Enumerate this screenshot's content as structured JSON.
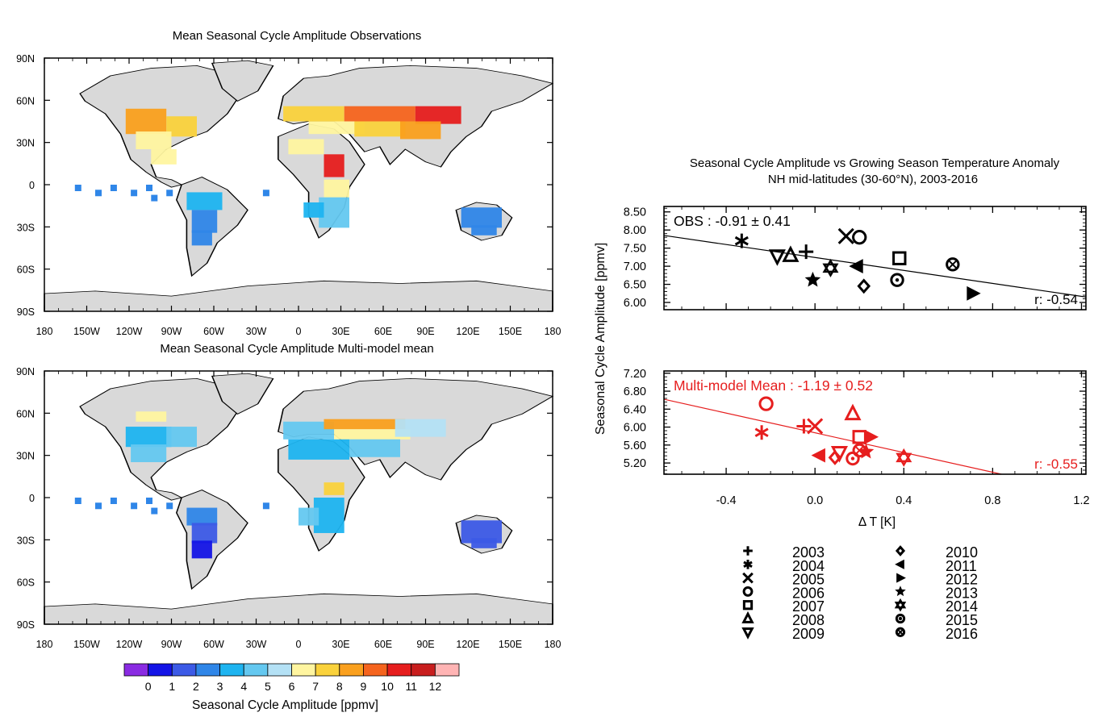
{
  "maps": [
    {
      "title": "Mean Seasonal Cycle Amplitude Observations",
      "lat_ticks": [
        "90N",
        "60N",
        "30N",
        "0",
        "30S",
        "60S",
        "90S"
      ],
      "lon_ticks": [
        "180",
        "150W",
        "120W",
        "90W",
        "60W",
        "30W",
        "0",
        "30E",
        "60E",
        "90E",
        "120E",
        "150E",
        "180"
      ]
    },
    {
      "title": "Mean Seasonal Cycle Amplitude Multi-model mean",
      "lat_ticks": [
        "90N",
        "60N",
        "30N",
        "0",
        "30S",
        "60S",
        "90S"
      ],
      "lon_ticks": [
        "180",
        "150W",
        "120W",
        "90W",
        "60W",
        "30W",
        "0",
        "30E",
        "60E",
        "90E",
        "120E",
        "150E",
        "180"
      ]
    }
  ],
  "colorbar": {
    "label": "Seasonal Cycle Amplitude [ppmv]",
    "ticks": [
      "0",
      "1",
      "2",
      "3",
      "4",
      "5",
      "6",
      "7",
      "8",
      "9",
      "10",
      "11",
      "12"
    ],
    "colors": [
      "#8a2be2",
      "#1414e6",
      "#3c5ae6",
      "#2f86e8",
      "#1eb4f0",
      "#64c8f0",
      "#b4e1f5",
      "#fff5a0",
      "#fad23c",
      "#faa01e",
      "#f5641e",
      "#e61e1e",
      "#c81e1e",
      "#ffb4b4"
    ]
  },
  "scatter_header": {
    "title": "Seasonal Cycle Amplitude vs Growing Season Temperature Anomaly",
    "subtitle": "NH mid-latitudes (30-60°N), 2003-2016",
    "ylabel": "Seasonal Cycle Amplitude [ppmv]",
    "xlabel": "Δ T [K]",
    "x_ticks": [
      "-0.4",
      "0.0",
      "0.4",
      "0.8",
      "1.2"
    ]
  },
  "chart_data": [
    {
      "type": "scatter",
      "label": "OBS : -0.91 ± 0.41",
      "r_label": "r: -0.54",
      "color": "#000000",
      "xlim": [
        -0.68,
        1.22
      ],
      "ylim": [
        5.8,
        8.65
      ],
      "y_ticks": [
        "8.50",
        "8.00",
        "7.50",
        "7.00",
        "6.50",
        "6.00"
      ],
      "fit_line": {
        "x": [
          -0.68,
          1.22
        ],
        "y": [
          7.85,
          6.15
        ]
      },
      "points": [
        {
          "year": "2003",
          "x": -0.04,
          "y": 7.4
        },
        {
          "year": "2004",
          "x": -0.33,
          "y": 7.7
        },
        {
          "year": "2005",
          "x": 0.14,
          "y": 7.83
        },
        {
          "year": "2006",
          "x": 0.2,
          "y": 7.8
        },
        {
          "year": "2007",
          "x": 0.38,
          "y": 7.22
        },
        {
          "year": "2008",
          "x": -0.11,
          "y": 7.3
        },
        {
          "year": "2009",
          "x": -0.17,
          "y": 7.28
        },
        {
          "year": "2010",
          "x": 0.22,
          "y": 6.45
        },
        {
          "year": "2011",
          "x": 0.19,
          "y": 7.0
        },
        {
          "year": "2012",
          "x": 0.71,
          "y": 6.25
        },
        {
          "year": "2013",
          "x": -0.01,
          "y": 6.62
        },
        {
          "year": "2014",
          "x": 0.07,
          "y": 6.95
        },
        {
          "year": "2015",
          "x": 0.37,
          "y": 6.62
        },
        {
          "year": "2016",
          "x": 0.62,
          "y": 7.05
        }
      ]
    },
    {
      "type": "scatter",
      "label": "Multi-model Mean : -1.19 ± 0.52",
      "r_label": "r: -0.55",
      "color": "#e61e1e",
      "xlim": [
        -0.68,
        1.22
      ],
      "ylim": [
        4.95,
        7.25
      ],
      "y_ticks": [
        "7.20",
        "6.80",
        "6.40",
        "6.00",
        "5.60",
        "5.20"
      ],
      "fit_line": {
        "x": [
          -0.68,
          0.84
        ],
        "y": [
          6.62,
          4.95
        ]
      },
      "points": [
        {
          "year": "2003",
          "x": -0.05,
          "y": 6.02
        },
        {
          "year": "2004",
          "x": -0.24,
          "y": 5.88
        },
        {
          "year": "2005",
          "x": 0.0,
          "y": 6.02
        },
        {
          "year": "2006",
          "x": -0.22,
          "y": 6.52
        },
        {
          "year": "2007",
          "x": 0.2,
          "y": 5.78
        },
        {
          "year": "2008",
          "x": 0.17,
          "y": 6.3
        },
        {
          "year": "2009",
          "x": 0.11,
          "y": 5.43
        },
        {
          "year": "2010",
          "x": 0.09,
          "y": 5.32
        },
        {
          "year": "2011",
          "x": 0.02,
          "y": 5.37
        },
        {
          "year": "2012",
          "x": 0.25,
          "y": 5.78
        },
        {
          "year": "2013",
          "x": 0.23,
          "y": 5.45
        },
        {
          "year": "2014",
          "x": 0.4,
          "y": 5.32
        },
        {
          "year": "2015",
          "x": 0.17,
          "y": 5.3
        },
        {
          "year": "2016",
          "x": 0.2,
          "y": 5.48
        }
      ]
    }
  ],
  "legend": {
    "left": [
      {
        "year": "2003",
        "symbol": "plus"
      },
      {
        "year": "2004",
        "symbol": "asterisk"
      },
      {
        "year": "2005",
        "symbol": "cross"
      },
      {
        "year": "2006",
        "symbol": "circle"
      },
      {
        "year": "2007",
        "symbol": "square"
      },
      {
        "year": "2008",
        "symbol": "triangle-up"
      },
      {
        "year": "2009",
        "symbol": "triangle-down"
      }
    ],
    "right": [
      {
        "year": "2010",
        "symbol": "diamond"
      },
      {
        "year": "2011",
        "symbol": "triangle-left"
      },
      {
        "year": "2012",
        "symbol": "triangle-right"
      },
      {
        "year": "2013",
        "symbol": "star"
      },
      {
        "year": "2014",
        "symbol": "star-of-david"
      },
      {
        "year": "2015",
        "symbol": "circle-dot"
      },
      {
        "year": "2016",
        "symbol": "circle-cross"
      }
    ]
  }
}
